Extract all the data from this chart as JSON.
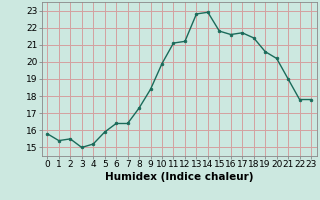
{
  "x": [
    0,
    1,
    2,
    3,
    4,
    5,
    6,
    7,
    8,
    9,
    10,
    11,
    12,
    13,
    14,
    15,
    16,
    17,
    18,
    19,
    20,
    21,
    22,
    23
  ],
  "y": [
    15.8,
    15.4,
    15.5,
    15.0,
    15.2,
    15.9,
    16.4,
    16.4,
    17.3,
    18.4,
    19.9,
    21.1,
    21.2,
    22.8,
    22.9,
    21.8,
    21.6,
    21.7,
    21.4,
    20.6,
    20.2,
    19.0,
    17.8,
    17.8
  ],
  "line_color": "#1a6b5a",
  "marker": "o",
  "marker_size": 2.0,
  "line_width": 1.0,
  "bg_color": "#cce8e0",
  "grid_color": "#d4a0a0",
  "xlabel": "Humidex (Indice chaleur)",
  "xlim": [
    -0.5,
    23.5
  ],
  "ylim": [
    14.5,
    23.5
  ],
  "yticks": [
    15,
    16,
    17,
    18,
    19,
    20,
    21,
    22,
    23
  ],
  "xticks": [
    0,
    1,
    2,
    3,
    4,
    5,
    6,
    7,
    8,
    9,
    10,
    11,
    12,
    13,
    14,
    15,
    16,
    17,
    18,
    19,
    20,
    21,
    22,
    23
  ],
  "tick_fontsize": 6.5,
  "xlabel_fontsize": 7.5
}
